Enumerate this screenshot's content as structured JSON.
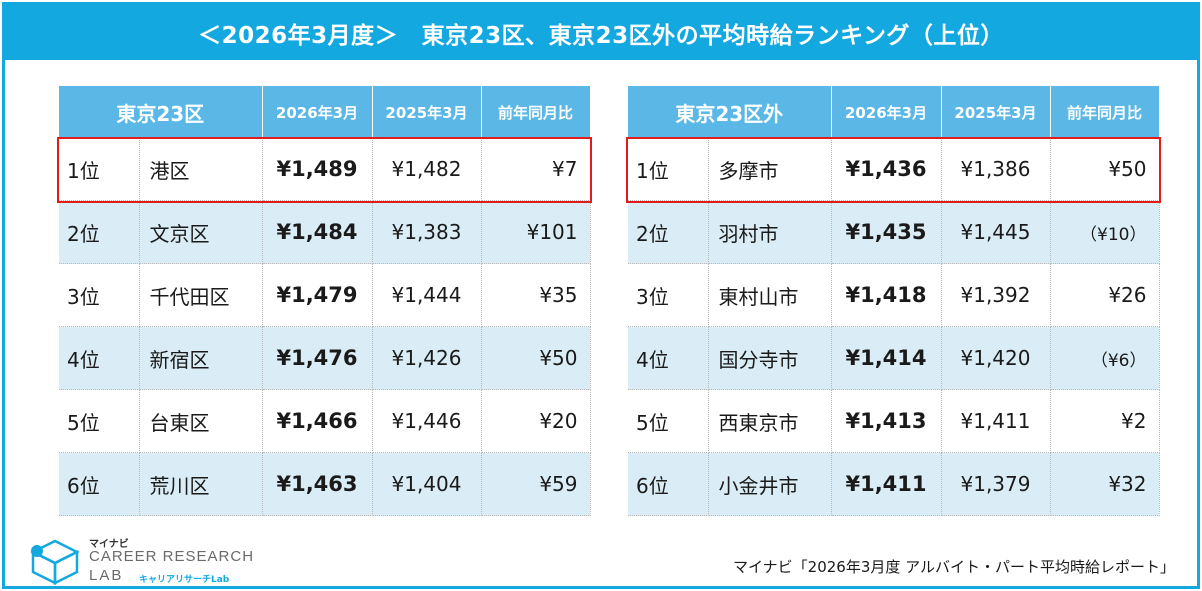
{
  "title": "＜2026年3月度＞　東京23区、東京23区外の平均時給ランキング（上位）",
  "left_table": {
    "headers": [
      "東京23区",
      "2026年3月",
      "2025年3月",
      "前年同月比"
    ],
    "rows": [
      {
        "rank": "1位",
        "name": "港区",
        "cur": "¥1,489",
        "prev": "¥1,482",
        "yoy": "¥7"
      },
      {
        "rank": "2位",
        "name": "文京区",
        "cur": "¥1,484",
        "prev": "¥1,383",
        "yoy": "¥101"
      },
      {
        "rank": "3位",
        "name": "千代田区",
        "cur": "¥1,479",
        "prev": "¥1,444",
        "yoy": "¥35"
      },
      {
        "rank": "4位",
        "name": "新宿区",
        "cur": "¥1,476",
        "prev": "¥1,426",
        "yoy": "¥50"
      },
      {
        "rank": "5位",
        "name": "台東区",
        "cur": "¥1,466",
        "prev": "¥1,446",
        "yoy": "¥20"
      },
      {
        "rank": "6位",
        "name": "荒川区",
        "cur": "¥1,463",
        "prev": "¥1,404",
        "yoy": "¥59"
      }
    ]
  },
  "right_table": {
    "headers": [
      "東京23区外",
      "2026年3月",
      "2025年3月",
      "前年同月比"
    ],
    "rows": [
      {
        "rank": "1位",
        "name": "多摩市",
        "cur": "¥1,436",
        "prev": "¥1,386",
        "yoy": "¥50"
      },
      {
        "rank": "2位",
        "name": "羽村市",
        "cur": "¥1,435",
        "prev": "¥1,445",
        "yoy": "（¥10）"
      },
      {
        "rank": "3位",
        "name": "東村山市",
        "cur": "¥1,418",
        "prev": "¥1,392",
        "yoy": "¥26"
      },
      {
        "rank": "4位",
        "name": "国分寺市",
        "cur": "¥1,414",
        "prev": "¥1,420",
        "yoy": "（¥6）"
      },
      {
        "rank": "5位",
        "name": "西東京市",
        "cur": "¥1,413",
        "prev": "¥1,411",
        "yoy": "¥2"
      },
      {
        "rank": "6位",
        "name": "小金井市",
        "cur": "¥1,411",
        "prev": "¥1,379",
        "yoy": "¥32"
      }
    ]
  },
  "logo": {
    "mynavi": "マイナビ",
    "line1": "CAREER RESEARCH",
    "line2": "LAB",
    "kana": "キャリアリサーチLab"
  },
  "source": "マイナビ「2026年3月度 アルバイト・パート平均時給レポート」",
  "colors": {
    "accent": "#13a8e0",
    "header": "#5bb8e6",
    "row_alt": "#daedf6",
    "highlight": "#e21b1b",
    "negative": "#e21b1b"
  }
}
